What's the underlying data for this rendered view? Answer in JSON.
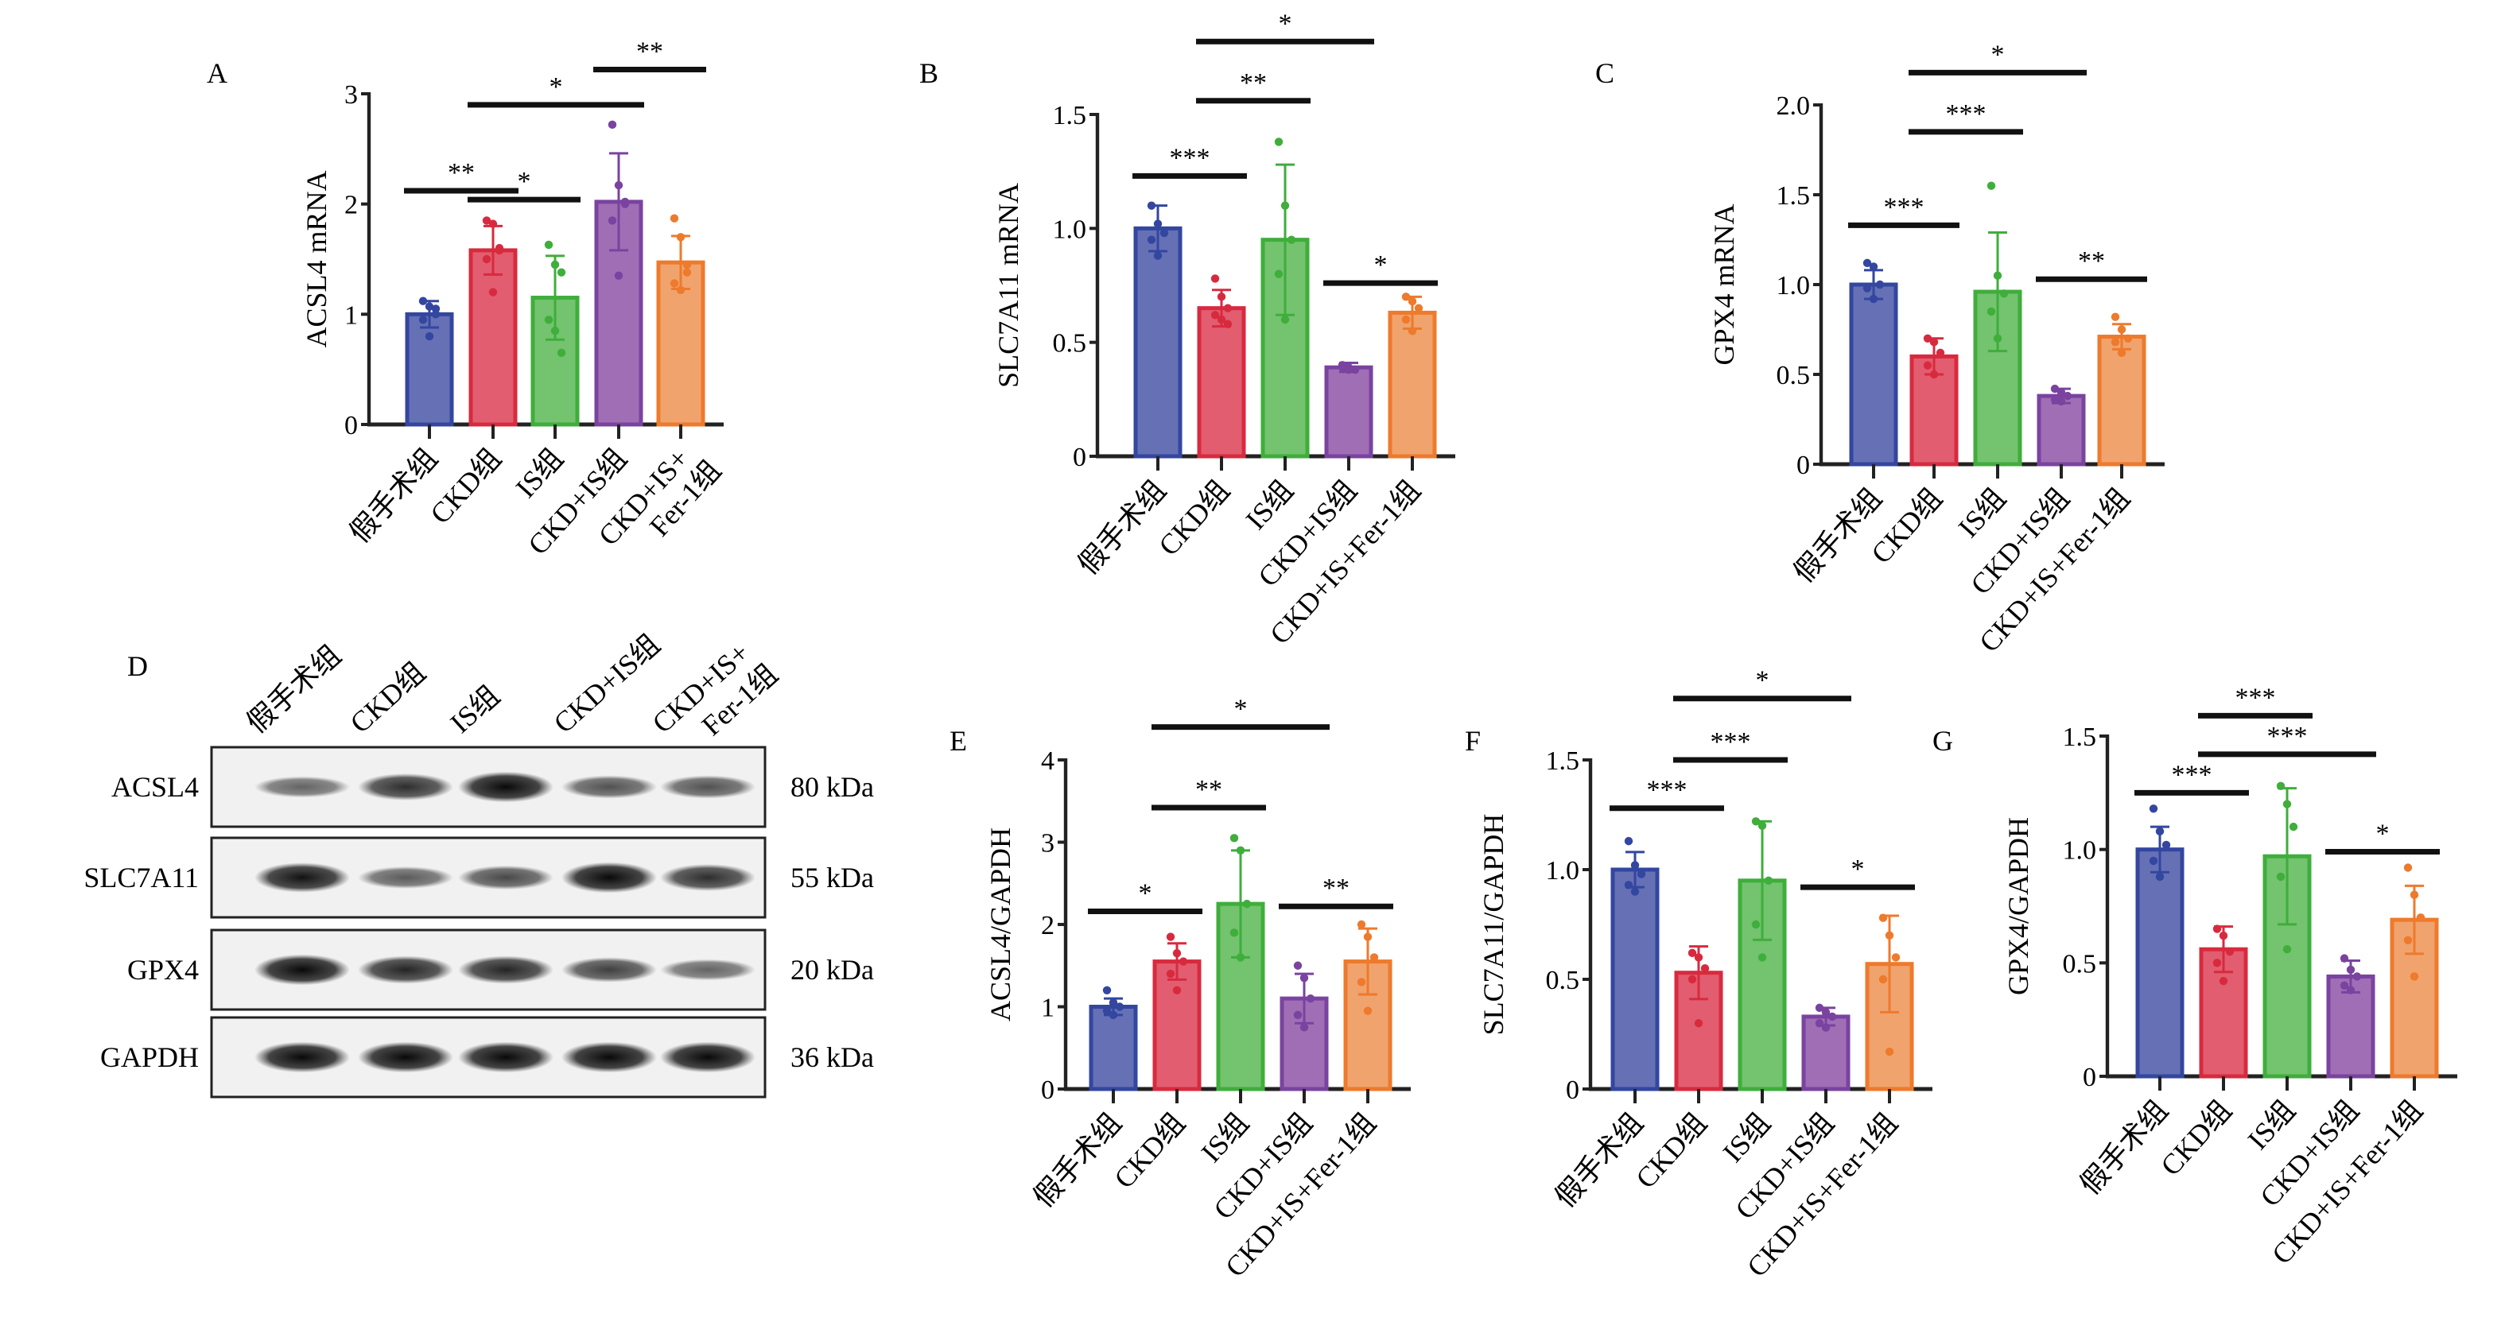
{
  "groups": [
    "假手术组",
    "CKD组",
    "IS组",
    "CKD+IS组",
    "CKD+IS+Fer-1组"
  ],
  "colors": {
    "fill": [
      "#6670b5",
      "#e25d70",
      "#73c36f",
      "#a06eb5",
      "#f0a36d"
    ],
    "edge": [
      "#3346a0",
      "#d82a3e",
      "#3fae3b",
      "#7a43a0",
      "#ee7a2c"
    ]
  },
  "chart_data": [
    {
      "panel": "A",
      "type": "bar",
      "ylabel": "ACSL4 mRNA",
      "ylim": [
        0,
        3
      ],
      "yticks": [
        "0",
        "1",
        "2",
        "3"
      ],
      "ytick_values": [
        0,
        1,
        2,
        3
      ],
      "categories": [
        "假手术组",
        "CKD组",
        "IS组",
        "CKD+IS组",
        "CKD+IS+\nFer-1组"
      ],
      "values": [
        1.0,
        1.58,
        1.15,
        2.02,
        1.47
      ],
      "errors": [
        0.12,
        0.22,
        0.38,
        0.44,
        0.24
      ],
      "points": [
        [
          1.12,
          1.07,
          1.0,
          0.95,
          0.8,
          1.05
        ],
        [
          1.85,
          1.82,
          1.58,
          1.5,
          1.2,
          1.6
        ],
        [
          1.63,
          1.45,
          1.38,
          0.95,
          0.85,
          0.65
        ],
        [
          2.72,
          2.17,
          2.02,
          1.85,
          1.35,
          2.0
        ],
        [
          1.87,
          1.7,
          1.38,
          1.28,
          1.22,
          1.45
        ]
      ],
      "significance": [
        {
          "from": 0,
          "to": 1,
          "label": "**",
          "y": 2.12
        },
        {
          "from": 1,
          "to": 2,
          "label": "*",
          "y": 2.04
        },
        {
          "from": 1,
          "to": 3,
          "label": "*",
          "y": 2.9
        },
        {
          "from": 3,
          "to": 4,
          "label": "**",
          "y": 3.22
        }
      ]
    },
    {
      "panel": "B",
      "type": "bar",
      "ylabel": "SLC7A11 mRNA",
      "ylim": [
        0,
        1.5
      ],
      "yticks": [
        "0",
        "0.5",
        "1.0",
        "1.5"
      ],
      "ytick_values": [
        0,
        0.5,
        1.0,
        1.5
      ],
      "categories": [
        "假手术组",
        "CKD组",
        "IS组",
        "CKD+IS组",
        "CKD+IS+Fer-1组"
      ],
      "values": [
        1.0,
        0.65,
        0.95,
        0.39,
        0.63
      ],
      "errors": [
        0.1,
        0.08,
        0.33,
        0.02,
        0.07
      ],
      "points": [
        [
          1.1,
          1.02,
          0.98,
          0.95,
          0.88
        ],
        [
          0.78,
          0.7,
          0.65,
          0.62,
          0.6,
          0.58
        ],
        [
          1.38,
          1.1,
          0.95,
          0.8,
          0.6
        ],
        [
          0.4,
          0.39,
          0.38,
          0.39,
          0.38
        ],
        [
          0.7,
          0.68,
          0.65,
          0.6,
          0.55
        ]
      ],
      "significance": [
        {
          "from": 0,
          "to": 1,
          "label": "***",
          "y": 1.23
        },
        {
          "from": 1,
          "to": 2,
          "label": "**",
          "y": 1.56
        },
        {
          "from": 1,
          "to": 3,
          "label": "*",
          "y": 1.82
        },
        {
          "from": 3,
          "to": 4,
          "label": "*",
          "y": 0.76
        }
      ]
    },
    {
      "panel": "C",
      "type": "bar",
      "ylabel": "GPX4 mRNA",
      "ylim": [
        0,
        2.0
      ],
      "yticks": [
        "0",
        "0.5",
        "1.0",
        "1.5",
        "2.0"
      ],
      "ytick_values": [
        0,
        0.5,
        1.0,
        1.5,
        2.0
      ],
      "categories": [
        "假手术组",
        "CKD组",
        "IS组",
        "CKD+IS组",
        "CKD+IS+Fer-1组"
      ],
      "values": [
        1.0,
        0.6,
        0.96,
        0.38,
        0.71
      ],
      "errors": [
        0.08,
        0.1,
        0.33,
        0.04,
        0.07
      ],
      "points": [
        [
          1.12,
          1.1,
          1.0,
          0.98,
          0.92
        ],
        [
          0.7,
          0.68,
          0.62,
          0.55,
          0.5
        ],
        [
          1.55,
          1.05,
          0.95,
          0.85,
          0.7
        ],
        [
          0.42,
          0.4,
          0.38,
          0.36,
          0.35
        ],
        [
          0.82,
          0.75,
          0.7,
          0.68,
          0.62
        ]
      ],
      "significance": [
        {
          "from": 0,
          "to": 1,
          "label": "***",
          "y": 1.33
        },
        {
          "from": 1,
          "to": 2,
          "label": "***",
          "y": 1.85
        },
        {
          "from": 1,
          "to": 3,
          "label": "*",
          "y": 2.18
        },
        {
          "from": 3,
          "to": 4,
          "label": "**",
          "y": 1.03
        }
      ]
    },
    {
      "panel": "E",
      "type": "bar",
      "ylabel": "ACSL4/GAPDH",
      "ylim": [
        0,
        4
      ],
      "yticks": [
        "0",
        "1",
        "2",
        "3",
        "4"
      ],
      "ytick_values": [
        0,
        1,
        2,
        3,
        4
      ],
      "categories": [
        "假手术组",
        "CKD组",
        "IS组",
        "CKD+IS组",
        "CKD+IS+Fer-1组"
      ],
      "values": [
        1.0,
        1.55,
        2.25,
        1.1,
        1.55
      ],
      "errors": [
        0.1,
        0.22,
        0.65,
        0.3,
        0.4
      ],
      "points": [
        [
          1.2,
          1.05,
          1.0,
          0.95,
          0.9
        ],
        [
          1.85,
          1.65,
          1.55,
          1.4,
          1.2
        ],
        [
          3.05,
          2.9,
          2.25,
          1.9,
          1.6
        ],
        [
          1.5,
          1.35,
          1.1,
          0.9,
          0.75
        ],
        [
          2.0,
          1.85,
          1.6,
          1.3,
          0.95
        ]
      ],
      "significance": [
        {
          "from": 0,
          "to": 1,
          "label": "*",
          "y": 2.16
        },
        {
          "from": 1,
          "to": 2,
          "label": "**",
          "y": 3.42
        },
        {
          "from": 1,
          "to": 3,
          "label": "*",
          "y": 4.4
        },
        {
          "from": 3,
          "to": 4,
          "label": "**",
          "y": 2.22
        }
      ]
    },
    {
      "panel": "F",
      "type": "bar",
      "ylabel": "SLC7A11/GAPDH",
      "ylim": [
        0,
        1.5
      ],
      "yticks": [
        "0",
        "0.5",
        "1.0",
        "1.5"
      ],
      "ytick_values": [
        0,
        0.5,
        1.0,
        1.5
      ],
      "categories": [
        "假手术组",
        "CKD组",
        "IS组",
        "CKD+IS组",
        "CKD+IS+Fer-1组"
      ],
      "values": [
        1.0,
        0.53,
        0.95,
        0.33,
        0.57
      ],
      "errors": [
        0.08,
        0.12,
        0.27,
        0.04,
        0.22
      ],
      "points": [
        [
          1.13,
          1.02,
          0.98,
          0.93,
          0.9
        ],
        [
          0.62,
          0.6,
          0.55,
          0.5,
          0.3
        ],
        [
          1.22,
          1.2,
          0.95,
          0.75,
          0.6
        ],
        [
          0.37,
          0.35,
          0.33,
          0.3,
          0.28
        ],
        [
          0.78,
          0.7,
          0.6,
          0.5,
          0.17
        ]
      ],
      "significance": [
        {
          "from": 0,
          "to": 1,
          "label": "***",
          "y": 1.28
        },
        {
          "from": 1,
          "to": 2,
          "label": "***",
          "y": 1.5
        },
        {
          "from": 1,
          "to": 3,
          "label": "*",
          "y": 1.78
        },
        {
          "from": 3,
          "to": 4,
          "label": "*",
          "y": 0.92
        }
      ]
    },
    {
      "panel": "G",
      "type": "bar",
      "ylabel": "GPX4/GAPDH",
      "ylim": [
        0,
        1.5
      ],
      "yticks": [
        "0",
        "0.5",
        "1.0",
        "1.5"
      ],
      "ytick_values": [
        0,
        0.5,
        1.0,
        1.5
      ],
      "categories": [
        "假手术组",
        "CKD组",
        "IS组",
        "CKD+IS组",
        "CKD+IS+Fer-1组"
      ],
      "values": [
        1.0,
        0.56,
        0.97,
        0.44,
        0.69
      ],
      "errors": [
        0.1,
        0.1,
        0.3,
        0.07,
        0.15
      ],
      "points": [
        [
          1.18,
          1.08,
          1.02,
          0.95,
          0.88
        ],
        [
          0.65,
          0.62,
          0.55,
          0.5,
          0.42
        ],
        [
          1.28,
          1.2,
          1.1,
          0.88,
          0.56
        ],
        [
          0.52,
          0.47,
          0.44,
          0.4,
          0.38
        ],
        [
          0.92,
          0.8,
          0.7,
          0.6,
          0.44
        ]
      ],
      "significance": [
        {
          "from": 0,
          "to": 1,
          "label": "***",
          "y": 1.25
        },
        {
          "from": 1,
          "to": 2,
          "label": "***",
          "y": 1.59
        },
        {
          "from": 1,
          "to": 3,
          "label": "***",
          "y": 1.42
        },
        {
          "from": 3,
          "to": 4,
          "label": "*",
          "y": 0.99
        }
      ]
    }
  ],
  "blot": {
    "panel": "D",
    "lanes": [
      "假手术组",
      "CKD组",
      "IS组",
      "CKD+IS组",
      "CKD+IS+\nFer-1组"
    ],
    "rows": [
      {
        "protein": "ACSL4",
        "size": "80 kDa",
        "intensity": [
          0.45,
          0.75,
          0.95,
          0.55,
          0.55
        ]
      },
      {
        "protein": "SLC7A11",
        "size": "55 kDa",
        "intensity": [
          0.9,
          0.5,
          0.6,
          0.95,
          0.75
        ]
      },
      {
        "protein": "GPX4",
        "size": "20 kDa",
        "intensity": [
          0.95,
          0.8,
          0.8,
          0.65,
          0.45
        ]
      },
      {
        "protein": "GAPDH",
        "size": "36 kDa",
        "intensity": [
          0.95,
          0.95,
          0.95,
          0.95,
          0.95
        ]
      }
    ]
  }
}
